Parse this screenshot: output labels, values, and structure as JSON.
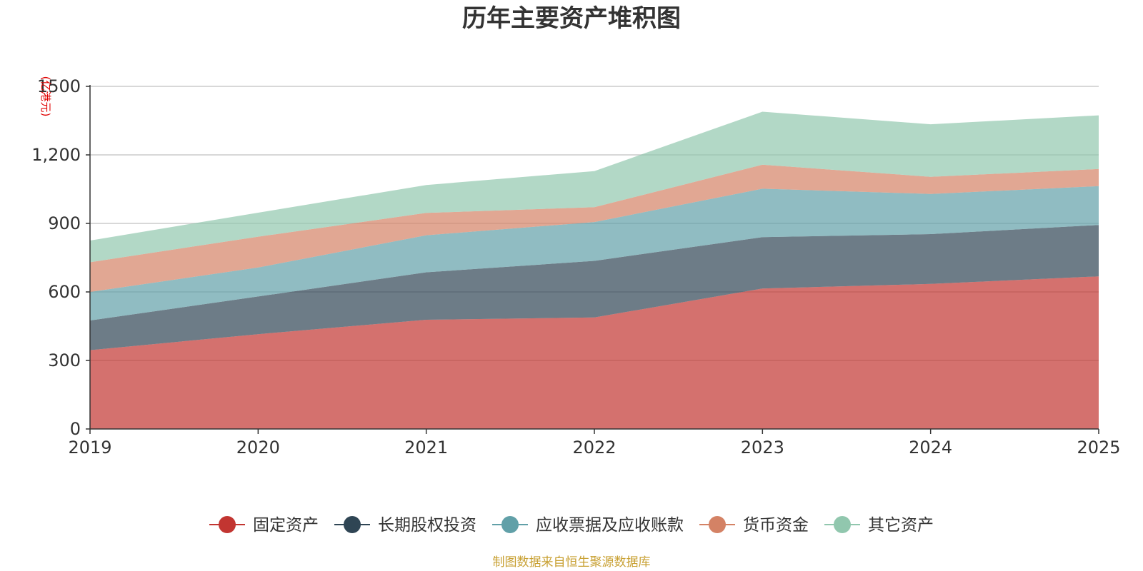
{
  "chart_data": {
    "type": "area",
    "stacked": true,
    "title": "历年主要资产堆积图",
    "unit_label": "(亿港元)",
    "source": "制图数据来自恒生聚源数据库",
    "categories": [
      "2019",
      "2020",
      "2021",
      "2022",
      "2023",
      "2024",
      "2025"
    ],
    "ylim": [
      0,
      1500
    ],
    "yticks": [
      0,
      300,
      600,
      900,
      1200,
      1500
    ],
    "ytick_labels": [
      "0",
      "300",
      "600",
      "900",
      "1,200",
      "1500"
    ],
    "grid": true,
    "legend_position": "bottom-center",
    "series": [
      {
        "name": "固定资产",
        "color": "#c23531",
        "values": [
          345,
          415,
          478,
          488,
          615,
          635,
          668
        ]
      },
      {
        "name": "长期股权投资",
        "color": "#2f4554",
        "values": [
          130,
          165,
          208,
          248,
          225,
          218,
          225
        ]
      },
      {
        "name": "应收票据及应收账款",
        "color": "#61a0a8",
        "values": [
          125,
          127,
          162,
          170,
          212,
          176,
          170
        ]
      },
      {
        "name": "货币资金",
        "color": "#d48265",
        "values": [
          130,
          135,
          98,
          65,
          105,
          75,
          75
        ]
      },
      {
        "name": "其它资产",
        "color": "#91c7ae",
        "values": [
          95,
          105,
          122,
          158,
          232,
          230,
          235
        ]
      }
    ]
  }
}
